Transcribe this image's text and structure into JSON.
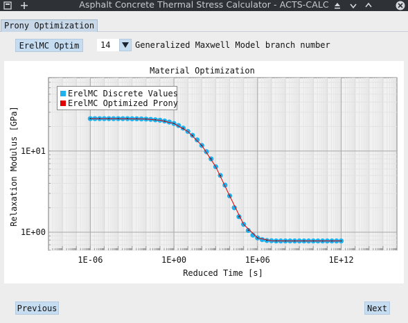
{
  "window": {
    "title": "Asphalt Concrete Thermal Stress Calculator - ACTS-CALC"
  },
  "tabs": [
    {
      "label": "Prony Optimization"
    }
  ],
  "controls": {
    "mode_button_label": "ErelMC Optim",
    "branch_number_value": "14",
    "branch_number_caption": "Generalized Maxwell Model branch number"
  },
  "navigation": {
    "previous_label": "Previous",
    "next_label": "Next"
  },
  "legend": {
    "discrete_label": "ErelMC Discrete Values",
    "optimized_label": "ErelMC Optimized Prony"
  },
  "colors": {
    "discrete": "#1fb0ee",
    "optimized": "#e00000",
    "tab_bg": "#c9d8e8",
    "button_bg": "#c6dcf0"
  },
  "chart_data": {
    "type": "scatter",
    "title": "Material Optimization",
    "xlabel": "Reduced Time [s]",
    "ylabel": "Relaxation Modulus [GPa]",
    "x_scale": "log",
    "y_scale": "log",
    "x_ticks": [
      "1E-06",
      "1E+00",
      "1E+06",
      "1E+12"
    ],
    "y_ticks": [
      "1E+00",
      "1E+01"
    ],
    "xlim": [
      1e-09,
      1e+16
    ],
    "ylim": [
      0.6,
      80
    ],
    "grid": true,
    "legend_position": "top-left",
    "series": [
      {
        "name": "ErelMC Discrete Values",
        "style": "markers",
        "color": "#1fb0ee",
        "x": [
          1e-06,
          2.15e-06,
          4.64e-06,
          1e-05,
          2.15e-05,
          4.64e-05,
          0.0001,
          0.000215,
          0.000464,
          0.001,
          0.00215,
          0.00464,
          0.01,
          0.0215,
          0.0464,
          0.1,
          0.215,
          0.464,
          1.0,
          2.15,
          4.64,
          10.0,
          21.5,
          46.4,
          100.0,
          215.0,
          464.0,
          1000.0,
          2150.0,
          4640.0,
          10000.0,
          21500.0,
          46400.0,
          100000.0,
          215000.0,
          464000.0,
          1000000.0,
          2150000.0,
          4640000.0,
          10000000.0,
          21500000.0,
          46400000.0,
          100000000.0,
          215000000.0,
          464000000.0,
          1000000000.0,
          2150000000.0,
          4640000000.0,
          10000000000.0,
          21500000000.0,
          46400000000.0,
          100000000000.0,
          215000000000.0,
          464000000000.0,
          1000000000000.0
        ],
        "y": [
          25.0,
          25.0,
          25.0,
          25.0,
          25.0,
          25.0,
          25.0,
          25.0,
          25.0,
          24.9,
          24.9,
          24.8,
          24.7,
          24.5,
          24.2,
          23.9,
          23.4,
          22.7,
          21.8,
          20.6,
          19.1,
          17.4,
          15.6,
          13.7,
          11.7,
          9.8,
          8.0,
          6.4,
          5.0,
          3.8,
          2.8,
          2.0,
          1.55,
          1.25,
          1.05,
          0.92,
          0.85,
          0.81,
          0.79,
          0.785,
          0.78,
          0.78,
          0.78,
          0.78,
          0.78,
          0.78,
          0.78,
          0.78,
          0.78,
          0.78,
          0.78,
          0.78,
          0.78,
          0.78,
          0.78
        ]
      },
      {
        "name": "ErelMC Optimized Prony",
        "style": "line",
        "color": "#e00000",
        "x": [
          1e-06,
          0.0001,
          0.01,
          0.1,
          1.0,
          10.0,
          100.0,
          1000.0,
          10000.0,
          100000.0,
          1000000.0,
          10000000.0,
          100000000.0,
          1000000000.0,
          10000000000.0,
          100000000000.0,
          1000000000000.0
        ],
        "y": [
          25.0,
          25.0,
          24.7,
          23.9,
          21.8,
          17.4,
          11.7,
          6.4,
          2.8,
          1.25,
          0.85,
          0.785,
          0.78,
          0.78,
          0.78,
          0.78,
          0.78
        ]
      }
    ]
  }
}
